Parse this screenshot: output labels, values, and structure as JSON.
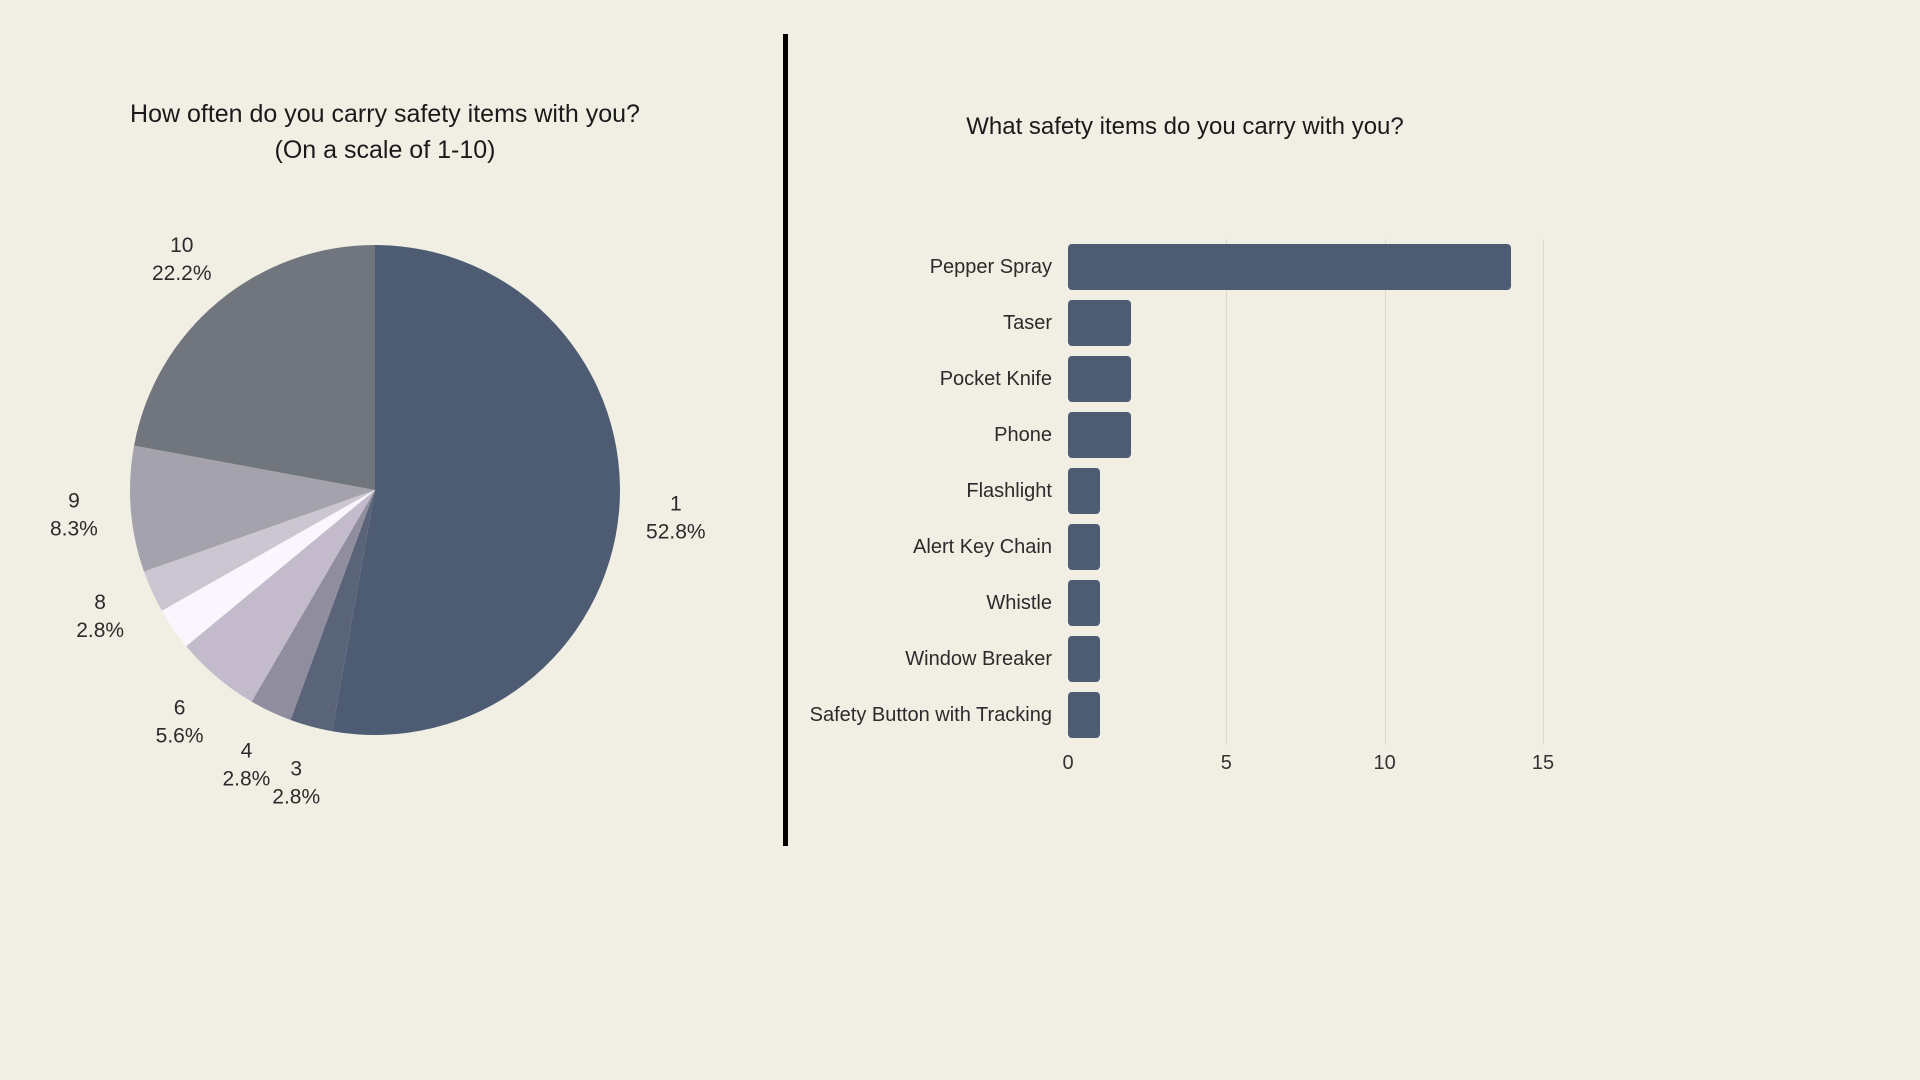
{
  "background_color": "#F1EEE4",
  "divider_color": "#000000",
  "chart_data": [
    {
      "type": "pie",
      "title": "How often do you carry safety items with you? (On a scale of 1-10)",
      "title_lines": [
        "How often do you carry safety items with you?",
        "(On a scale of 1-10)"
      ],
      "start_angle": "top",
      "direction": "clockwise",
      "legend": "none",
      "slices": [
        {
          "label": "1",
          "percent": 52.8,
          "color": "#4D5C73"
        },
        {
          "label": "3",
          "percent": 2.8,
          "color": "#5A6478"
        },
        {
          "label": "4",
          "percent": 2.8,
          "color": "#908D9F"
        },
        {
          "label": "6",
          "percent": 5.6,
          "color": "#C3BBCB"
        },
        {
          "label": "",
          "percent": 2.8,
          "color": "#FBF5FE"
        },
        {
          "label": "8",
          "percent": 2.8,
          "color": "#CCC6D3"
        },
        {
          "label": "9",
          "percent": 8.3,
          "color": "#A3A2AD"
        },
        {
          "label": "10",
          "percent": 22.2,
          "color": "#70757E"
        }
      ]
    },
    {
      "type": "bar",
      "orientation": "horizontal",
      "title": "What safety items do you carry with you?",
      "categories": [
        "Pepper Spray",
        "Taser",
        "Pocket Knife",
        "Phone",
        "Flashlight",
        "Alert Key Chain",
        "Whistle",
        "Window Breaker",
        "Safety Button with Tracking"
      ],
      "values": [
        14,
        2,
        2,
        2,
        1,
        1,
        1,
        1,
        1
      ],
      "xlim": [
        0,
        15
      ],
      "xticks": [
        0,
        5,
        10,
        15
      ],
      "bar_color": "#4D5C73",
      "gridline_color": "#DBD8CE",
      "grid": "vertical"
    }
  ]
}
